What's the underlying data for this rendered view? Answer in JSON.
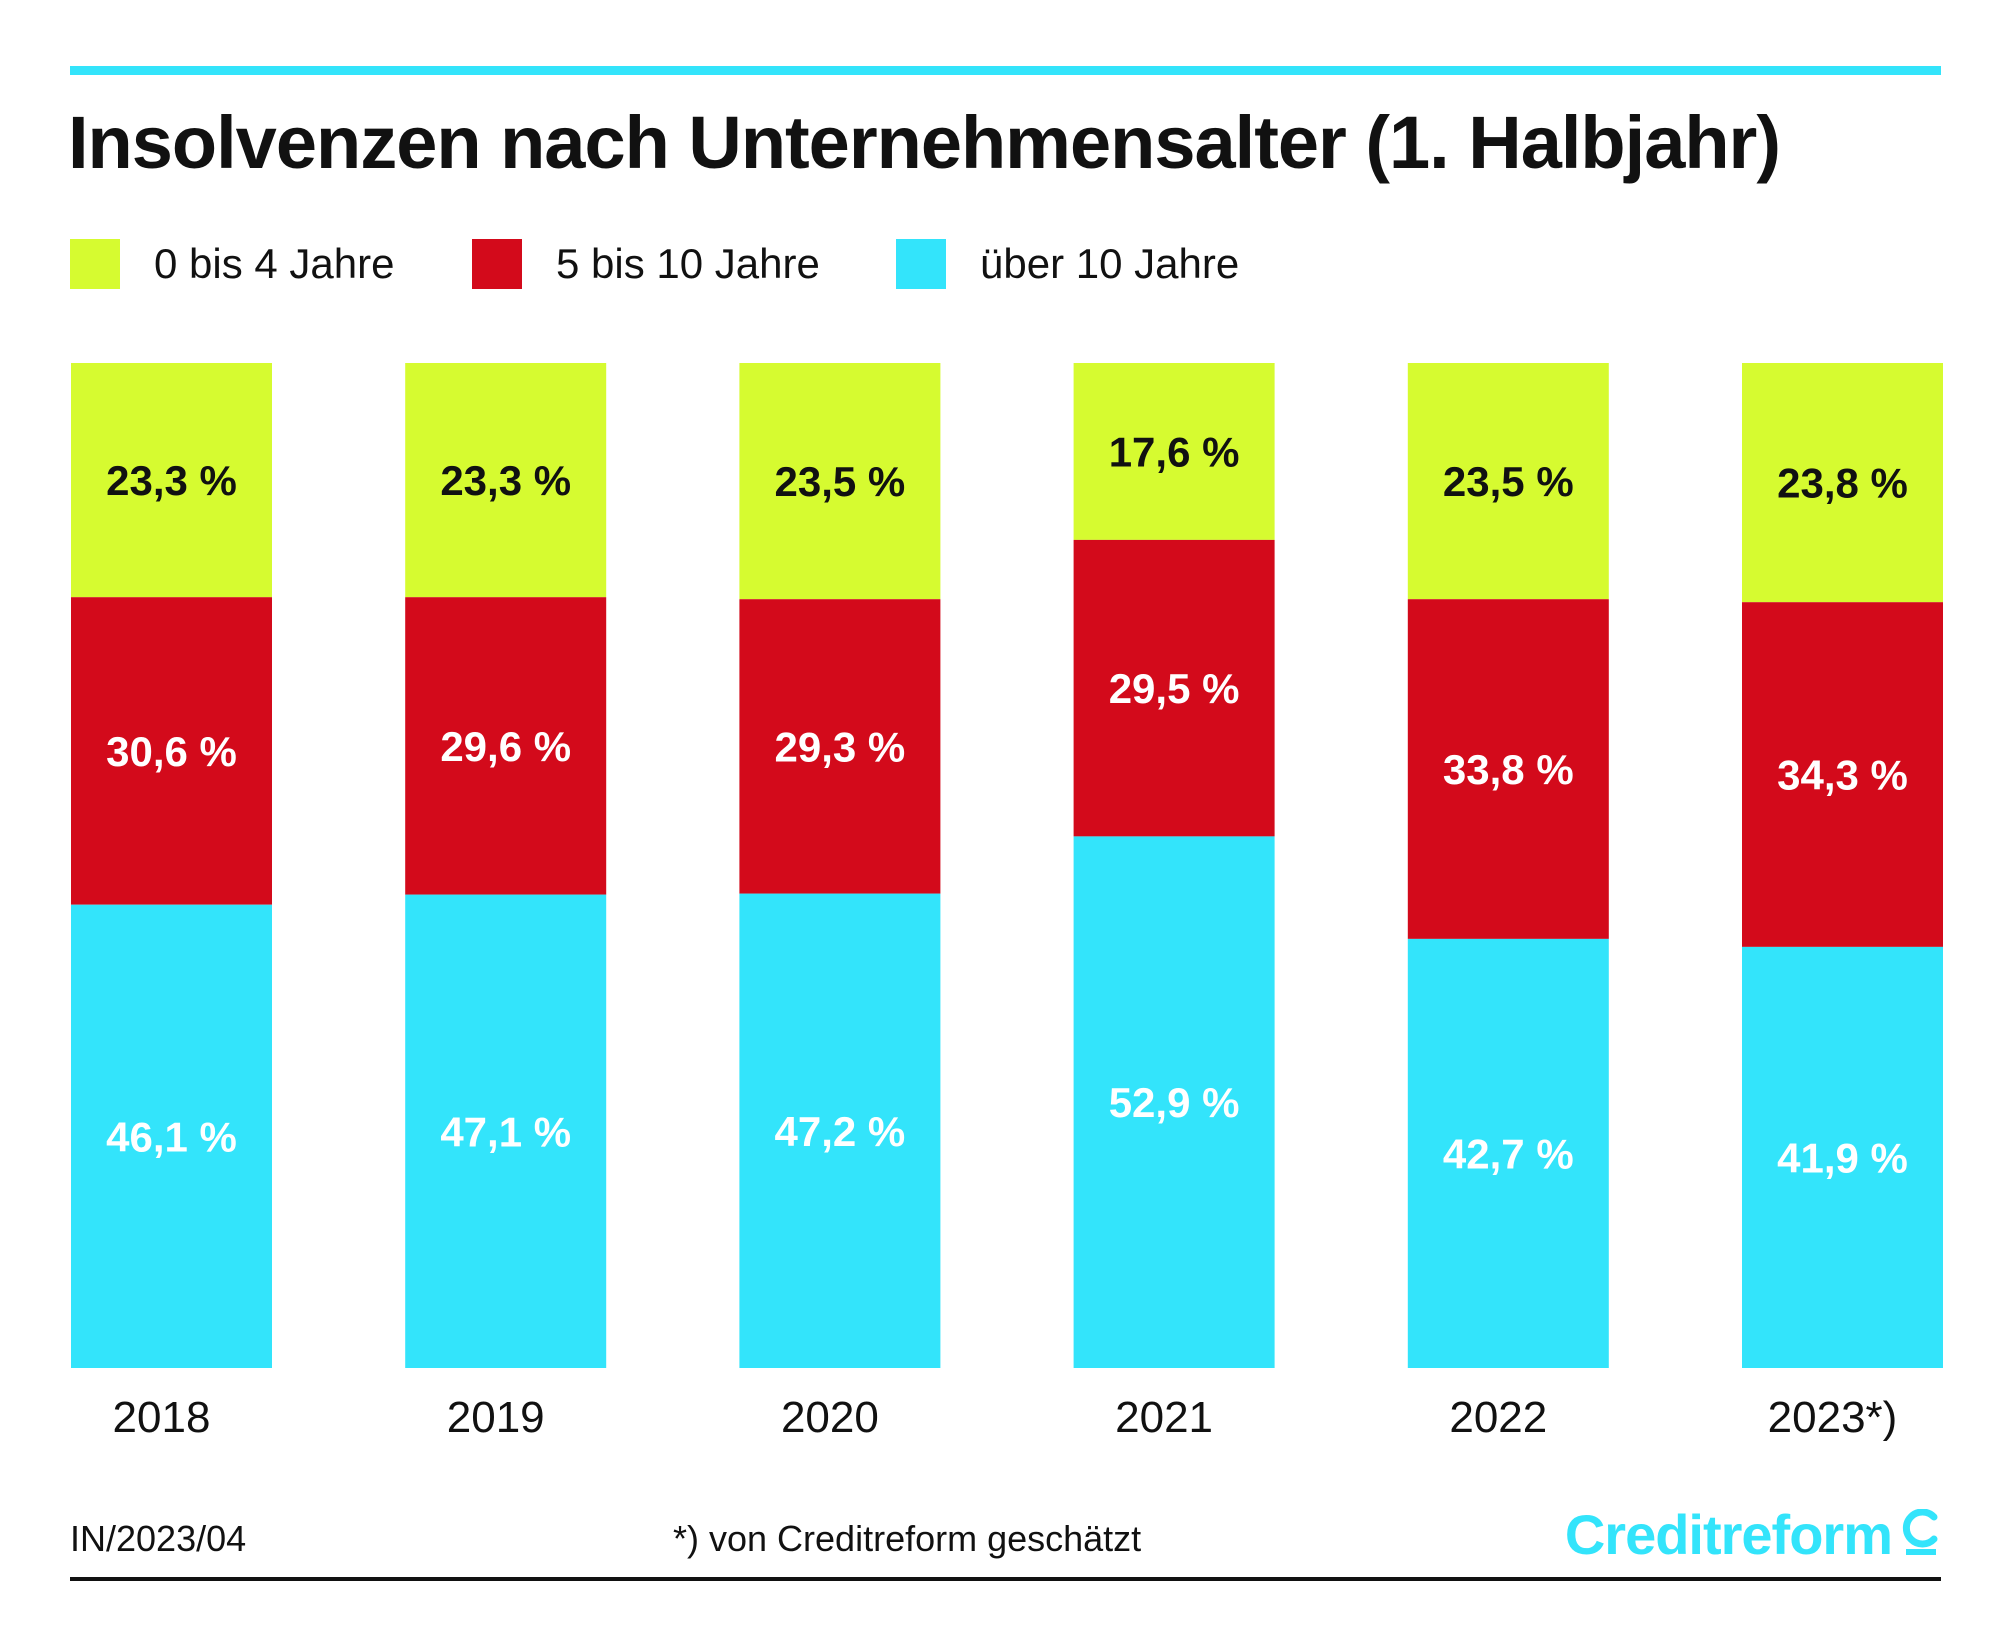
{
  "colors": {
    "accent": "#33e4fb",
    "age_0_4": "#d6fb30",
    "age_5_10": "#d30a1b",
    "age_over_10": "#33e4fb",
    "text_dark": "#111111",
    "text_light": "#ffffff"
  },
  "chart_data": {
    "type": "bar",
    "stacked": true,
    "title": "Insolvenzen nach Unternehmensalter (1. Halbjahr)",
    "categories": [
      "2018",
      "2019",
      "2020",
      "2021",
      "2022",
      "2023*)"
    ],
    "unit": "%",
    "ylim": [
      0,
      100
    ],
    "grid": false,
    "legend": "top-left",
    "series": [
      {
        "key": "age_0_4",
        "name": "0 bis 4 Jahre",
        "values": [
          23.3,
          23.3,
          23.5,
          17.6,
          23.5,
          23.8
        ],
        "labels": [
          "23,3 %",
          "23,3 %",
          "23,5 %",
          "17,6 %",
          "23,5 %",
          "23,8 %"
        ]
      },
      {
        "key": "age_5_10",
        "name": "5 bis 10 Jahre",
        "values": [
          30.6,
          29.6,
          29.3,
          29.5,
          33.8,
          34.3
        ],
        "labels": [
          "30,6 %",
          "29,6 %",
          "29,3 %",
          "29,5 %",
          "33,8 %",
          "34,3 %"
        ]
      },
      {
        "key": "age_over_10",
        "name": "über 10 Jahre",
        "values": [
          46.1,
          47.1,
          47.2,
          52.9,
          42.7,
          41.9
        ],
        "labels": [
          "46,1 %",
          "47,1 %",
          "47,2 %",
          "52,9 %",
          "42,7 %",
          "41,9 %"
        ]
      }
    ]
  },
  "footer": {
    "code": "IN/2023/04",
    "note": "*) von Creditreform geschätzt"
  },
  "brand": {
    "name": "Creditreform"
  }
}
